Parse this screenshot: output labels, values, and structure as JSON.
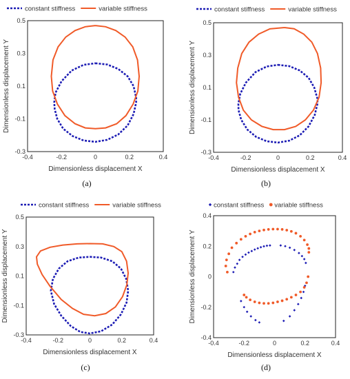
{
  "colors": {
    "constant": "#1c1cb4",
    "variable": "#f05a28",
    "frame": "#222222"
  },
  "chart_data": [
    {
      "type": "line",
      "panel_label": "(a)",
      "xlabel": "Dimensionless displacement X",
      "ylabel": "Dimensionless displacement Y",
      "xlim": [
        -0.4,
        0.4
      ],
      "ylim": [
        -0.3,
        0.5
      ],
      "xticks": [
        -0.4,
        -0.2,
        0,
        0.2,
        0.4
      ],
      "xtick_labels": [
        "-0.4",
        "-0.2",
        "0",
        "0.2",
        "0.4"
      ],
      "yticks": [
        -0.3,
        -0.1,
        0.1,
        0.3,
        0.5
      ],
      "ytick_labels": [
        "-0.3",
        "-0.1",
        "0.1",
        "0.3",
        "0.5"
      ],
      "legend": [
        "constant stiffness",
        "variable stiffness"
      ],
      "series": [
        {
          "name": "constant stiffness",
          "style": "dashed",
          "points": [
            [
              0.0,
              0.24
            ],
            [
              0.07,
              0.232
            ],
            [
              0.135,
              0.205
            ],
            [
              0.19,
              0.16
            ],
            [
              0.225,
              0.1
            ],
            [
              0.24,
              0.03
            ],
            [
              0.24,
              0.0
            ],
            [
              0.225,
              -0.07
            ],
            [
              0.19,
              -0.14
            ],
            [
              0.135,
              -0.195
            ],
            [
              0.07,
              -0.228
            ],
            [
              0.0,
              -0.24
            ],
            [
              -0.07,
              -0.232
            ],
            [
              -0.135,
              -0.205
            ],
            [
              -0.19,
              -0.16
            ],
            [
              -0.225,
              -0.1
            ],
            [
              -0.24,
              -0.04
            ],
            [
              -0.243,
              0.0
            ],
            [
              -0.235,
              0.06
            ],
            [
              -0.2,
              0.13
            ],
            [
              -0.14,
              0.195
            ],
            [
              -0.07,
              0.23
            ],
            [
              0.0,
              0.24
            ]
          ]
        },
        {
          "name": "variable stiffness",
          "style": "solid",
          "points": [
            [
              0.0,
              0.47
            ],
            [
              0.06,
              0.463
            ],
            [
              0.12,
              0.44
            ],
            [
              0.175,
              0.4
            ],
            [
              0.22,
              0.34
            ],
            [
              0.248,
              0.26
            ],
            [
              0.258,
              0.16
            ],
            [
              0.25,
              0.07
            ],
            [
              0.222,
              -0.01
            ],
            [
              0.18,
              -0.08
            ],
            [
              0.125,
              -0.13
            ],
            [
              0.06,
              -0.155
            ],
            [
              0.0,
              -0.16
            ],
            [
              -0.06,
              -0.155
            ],
            [
              -0.12,
              -0.13
            ],
            [
              -0.18,
              -0.08
            ],
            [
              -0.224,
              -0.01
            ],
            [
              -0.252,
              0.07
            ],
            [
              -0.26,
              0.16
            ],
            [
              -0.25,
              0.26
            ],
            [
              -0.22,
              0.34
            ],
            [
              -0.175,
              0.4
            ],
            [
              -0.12,
              0.44
            ],
            [
              -0.06,
              0.463
            ],
            [
              0.0,
              0.47
            ]
          ]
        }
      ]
    },
    {
      "type": "line",
      "panel_label": "(b)",
      "xlabel": "Dimensionless displacement X",
      "ylabel": "Dimensionless displacement Y",
      "xlim": [
        -0.4,
        0.4
      ],
      "ylim": [
        -0.3,
        0.5
      ],
      "xticks": [
        -0.4,
        -0.2,
        0,
        0.2,
        0.4
      ],
      "xtick_labels": [
        "-0.4",
        "-0.2",
        "0",
        "0.2",
        "0.4"
      ],
      "yticks": [
        -0.3,
        -0.1,
        0.1,
        0.3,
        0.5
      ],
      "ytick_labels": [
        "-0.3",
        "-0.1",
        "0.1",
        "0.3",
        "0.5"
      ],
      "legend": [
        "constant stiffness",
        "variable stiffness"
      ],
      "series": [
        {
          "name": "constant stiffness",
          "style": "dashed",
          "points": [
            [
              0.0,
              0.24
            ],
            [
              0.07,
              0.232
            ],
            [
              0.135,
              0.205
            ],
            [
              0.19,
              0.16
            ],
            [
              0.225,
              0.1
            ],
            [
              0.245,
              0.03
            ],
            [
              0.245,
              0.0
            ],
            [
              0.228,
              -0.07
            ],
            [
              0.19,
              -0.14
            ],
            [
              0.135,
              -0.195
            ],
            [
              0.07,
              -0.228
            ],
            [
              0.0,
              -0.24
            ],
            [
              -0.07,
              -0.232
            ],
            [
              -0.135,
              -0.205
            ],
            [
              -0.19,
              -0.16
            ],
            [
              -0.228,
              -0.1
            ],
            [
              -0.245,
              -0.04
            ],
            [
              -0.246,
              0.0
            ],
            [
              -0.235,
              0.06
            ],
            [
              -0.2,
              0.13
            ],
            [
              -0.14,
              0.195
            ],
            [
              -0.07,
              0.23
            ],
            [
              0.0,
              0.24
            ]
          ]
        },
        {
          "name": "variable stiffness",
          "style": "solid",
          "points": [
            [
              0.04,
              0.47
            ],
            [
              0.1,
              0.463
            ],
            [
              0.16,
              0.43
            ],
            [
              0.21,
              0.38
            ],
            [
              0.245,
              0.31
            ],
            [
              0.265,
              0.22
            ],
            [
              0.268,
              0.13
            ],
            [
              0.255,
              0.04
            ],
            [
              0.22,
              -0.04
            ],
            [
              0.17,
              -0.1
            ],
            [
              0.11,
              -0.14
            ],
            [
              0.04,
              -0.16
            ],
            [
              -0.03,
              -0.16
            ],
            [
              -0.1,
              -0.14
            ],
            [
              -0.165,
              -0.1
            ],
            [
              -0.215,
              -0.04
            ],
            [
              -0.245,
              0.04
            ],
            [
              -0.258,
              0.13
            ],
            [
              -0.25,
              0.22
            ],
            [
              -0.225,
              0.31
            ],
            [
              -0.18,
              0.38
            ],
            [
              -0.12,
              0.43
            ],
            [
              -0.05,
              0.462
            ],
            [
              0.04,
              0.47
            ]
          ]
        }
      ]
    },
    {
      "type": "line",
      "panel_label": "(c)",
      "xlabel": "Dimensionless displacement X",
      "ylabel": "Dimensionless displacement Y",
      "xlim": [
        -0.4,
        0.4
      ],
      "ylim": [
        -0.3,
        0.5
      ],
      "xticks": [
        -0.4,
        -0.2,
        0,
        0.2,
        0.4
      ],
      "xtick_labels": [
        "-0.4",
        "-0.2",
        "0",
        "0.2",
        "0.4"
      ],
      "yticks": [
        -0.3,
        -0.1,
        0.1,
        0.3,
        0.5
      ],
      "ytick_labels": [
        "-0.3",
        "-0.1",
        "0.1",
        "0.3",
        "0.5"
      ],
      "legend": [
        "constant stiffness",
        "variable stiffness"
      ],
      "series": [
        {
          "name": "constant stiffness",
          "style": "dashed",
          "points": [
            [
              0.0,
              0.23
            ],
            [
              0.07,
              0.225
            ],
            [
              0.14,
              0.2
            ],
            [
              0.195,
              0.15
            ],
            [
              0.228,
              0.08
            ],
            [
              0.24,
              0.0
            ],
            [
              0.23,
              -0.08
            ],
            [
              0.195,
              -0.16
            ],
            [
              0.14,
              -0.23
            ],
            [
              0.07,
              -0.275
            ],
            [
              0.0,
              -0.29
            ],
            [
              -0.06,
              -0.28
            ],
            [
              -0.12,
              -0.24
            ],
            [
              -0.18,
              -0.17
            ],
            [
              -0.225,
              -0.09
            ],
            [
              -0.245,
              0.0
            ],
            [
              -0.232,
              0.08
            ],
            [
              -0.195,
              0.15
            ],
            [
              -0.14,
              0.2
            ],
            [
              -0.07,
              0.225
            ],
            [
              0.0,
              0.23
            ]
          ]
        },
        {
          "name": "variable stiffness",
          "style": "solid",
          "points": [
            [
              0.0,
              0.32
            ],
            [
              0.08,
              0.318
            ],
            [
              0.15,
              0.3
            ],
            [
              0.2,
              0.265
            ],
            [
              0.23,
              0.2
            ],
            [
              0.24,
              0.12
            ],
            [
              0.232,
              0.04
            ],
            [
              0.205,
              -0.04
            ],
            [
              0.16,
              -0.11
            ],
            [
              0.1,
              -0.155
            ],
            [
              0.03,
              -0.17
            ],
            [
              -0.04,
              -0.16
            ],
            [
              -0.11,
              -0.12
            ],
            [
              -0.18,
              -0.06
            ],
            [
              -0.25,
              0.03
            ],
            [
              -0.3,
              0.11
            ],
            [
              -0.33,
              0.18
            ],
            [
              -0.335,
              0.23
            ],
            [
              -0.31,
              0.27
            ],
            [
              -0.25,
              0.295
            ],
            [
              -0.17,
              0.31
            ],
            [
              -0.08,
              0.318
            ],
            [
              0.0,
              0.32
            ]
          ]
        }
      ]
    },
    {
      "type": "scatter",
      "panel_label": "(d)",
      "xlabel": "Dimensionless displacement X",
      "ylabel": "Dimensionless displacement Y",
      "xlim": [
        -0.4,
        0.4
      ],
      "ylim": [
        -0.4,
        0.4
      ],
      "xticks": [
        -0.4,
        -0.2,
        0,
        0.2,
        0.4
      ],
      "xtick_labels": [
        "-0.4",
        "-0.2",
        "0",
        "0.2",
        "0.4"
      ],
      "yticks": [
        -0.4,
        -0.2,
        0,
        0.2,
        0.4
      ],
      "ytick_labels": [
        "-0.4",
        "-0.2",
        "0",
        "0.2",
        "0.4"
      ],
      "legend": [
        "constant stiffness",
        "variable stiffness"
      ],
      "series": [
        {
          "name": "constant stiffness",
          "marker": "diamond",
          "points": [
            [
              -0.27,
              0.03
            ],
            [
              -0.26,
              0.06
            ],
            [
              -0.245,
              0.085
            ],
            [
              -0.23,
              0.11
            ],
            [
              -0.21,
              0.13
            ],
            [
              -0.19,
              0.145
            ],
            [
              -0.17,
              0.158
            ],
            [
              -0.15,
              0.168
            ],
            [
              -0.13,
              0.178
            ],
            [
              -0.11,
              0.186
            ],
            [
              -0.09,
              0.193
            ],
            [
              -0.07,
              0.199
            ],
            [
              -0.05,
              0.203
            ],
            [
              -0.03,
              0.205
            ],
            [
              0.04,
              0.205
            ],
            [
              0.07,
              0.2
            ],
            [
              0.1,
              0.19
            ],
            [
              0.13,
              0.175
            ],
            [
              0.16,
              0.155
            ],
            [
              0.18,
              0.135
            ],
            [
              0.195,
              0.115
            ],
            [
              0.205,
              0.09
            ],
            [
              0.2,
              -0.06
            ],
            [
              0.19,
              -0.1
            ],
            [
              0.175,
              -0.14
            ],
            [
              0.155,
              -0.18
            ],
            [
              0.13,
              -0.22
            ],
            [
              0.1,
              -0.26
            ],
            [
              0.06,
              -0.29
            ],
            [
              -0.22,
              -0.16
            ],
            [
              -0.2,
              -0.2
            ],
            [
              -0.18,
              -0.23
            ],
            [
              -0.155,
              -0.26
            ],
            [
              -0.125,
              -0.285
            ],
            [
              -0.1,
              -0.3
            ]
          ]
        },
        {
          "name": "variable stiffness",
          "marker": "circle",
          "points": [
            [
              -0.31,
              0.03
            ],
            [
              -0.32,
              0.07
            ],
            [
              -0.315,
              0.11
            ],
            [
              -0.3,
              0.15
            ],
            [
              -0.28,
              0.19
            ],
            [
              -0.25,
              0.22
            ],
            [
              -0.22,
              0.245
            ],
            [
              -0.19,
              0.265
            ],
            [
              -0.16,
              0.28
            ],
            [
              -0.13,
              0.292
            ],
            [
              -0.1,
              0.3
            ],
            [
              -0.07,
              0.306
            ],
            [
              -0.04,
              0.31
            ],
            [
              -0.01,
              0.312
            ],
            [
              0.02,
              0.312
            ],
            [
              0.05,
              0.31
            ],
            [
              0.08,
              0.305
            ],
            [
              0.11,
              0.297
            ],
            [
              0.14,
              0.285
            ],
            [
              0.17,
              0.265
            ],
            [
              0.195,
              0.24
            ],
            [
              0.215,
              0.21
            ],
            [
              0.225,
              0.185
            ],
            [
              0.225,
              0.16
            ],
            [
              0.22,
              0.0
            ],
            [
              0.21,
              -0.04
            ],
            [
              0.195,
              -0.07
            ],
            [
              0.17,
              -0.1
            ],
            [
              0.14,
              -0.12
            ],
            [
              0.11,
              -0.135
            ],
            [
              0.08,
              -0.148
            ],
            [
              0.05,
              -0.158
            ],
            [
              0.02,
              -0.165
            ],
            [
              -0.01,
              -0.172
            ],
            [
              -0.04,
              -0.175
            ],
            [
              -0.07,
              -0.175
            ],
            [
              -0.1,
              -0.172
            ],
            [
              -0.13,
              -0.165
            ],
            [
              -0.16,
              -0.152
            ],
            [
              -0.185,
              -0.135
            ],
            [
              -0.2,
              -0.12
            ]
          ]
        }
      ]
    }
  ]
}
